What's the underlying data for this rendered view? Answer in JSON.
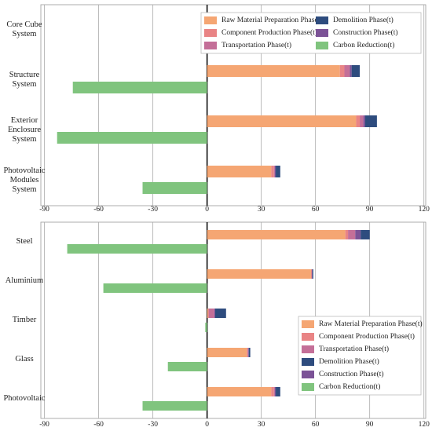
{
  "chart_data": [
    {
      "type": "bar",
      "orientation": "horizontal",
      "categories": [
        "Core Cube System",
        "Structure System",
        "Exterior Enclosure System",
        "Photovoltaic Modules System"
      ],
      "series": [
        {
          "name": "Raw Material Preparation Phase(t)",
          "color": "#f5a673",
          "values": [
            0.3,
            73.5,
            82.5,
            35.5
          ]
        },
        {
          "name": "Component Production Phase(t)",
          "color": "#e98485",
          "values": [
            0.8,
            2.5,
            2,
            1.5
          ]
        },
        {
          "name": "Transportation Phase(t)",
          "color": "#c46f98",
          "values": [
            0.8,
            3,
            2,
            0.5
          ]
        },
        {
          "name": "Demolition Phase(t)",
          "color": "#2e4c7e",
          "values": [
            2.3,
            4.5,
            6.5,
            2.5
          ]
        },
        {
          "name": "Construction Phase(t)",
          "color": "#7b5296",
          "values": [
            0.4,
            1,
            1,
            0.5
          ]
        },
        {
          "name": "Carbon Reduction(t)",
          "color": "#80c47e",
          "values": [
            0,
            -74.3,
            -83,
            -35.7
          ]
        }
      ],
      "xlim": [
        -92,
        121
      ],
      "xticks": [
        -90,
        -60,
        -30,
        0,
        30,
        60,
        90,
        120
      ],
      "grid": true,
      "legend": "upper right",
      "legend_columns": 2
    },
    {
      "type": "bar",
      "orientation": "horizontal",
      "categories": [
        "Steel",
        "Aluminium",
        "Timber",
        "Glass",
        "Photovoltaic"
      ],
      "series": [
        {
          "name": "Raw Material Preparation Phase(t)",
          "color": "#f5a673",
          "values": [
            76.5,
            57.5,
            0.5,
            22,
            35.5
          ]
        },
        {
          "name": "Component Production Phase(t)",
          "color": "#e98485",
          "values": [
            1.5,
            0.5,
            0.5,
            0.5,
            1.5
          ]
        },
        {
          "name": "Transportation Phase(t)",
          "color": "#c46f98",
          "values": [
            4,
            0,
            3,
            0.3,
            0.5
          ]
        },
        {
          "name": "Demolition Phase(t)",
          "color": "#2e4c7e",
          "values": [
            5,
            0.5,
            6,
            0.8,
            2.5
          ]
        },
        {
          "name": "Construction Phase(t)",
          "color": "#7b5296",
          "values": [
            3,
            0.3,
            0.5,
            0.3,
            0.5
          ]
        },
        {
          "name": "Carbon Reduction(t)",
          "color": "#80c47e",
          "values": [
            -77.4,
            -57.4,
            -1,
            -21.7,
            -35.7
          ]
        }
      ],
      "xlim": [
        -92,
        121
      ],
      "xticks": [
        -90,
        -60,
        -30,
        0,
        30,
        60,
        90,
        120
      ],
      "grid": true,
      "legend": "lower right",
      "legend_columns": 1
    }
  ]
}
